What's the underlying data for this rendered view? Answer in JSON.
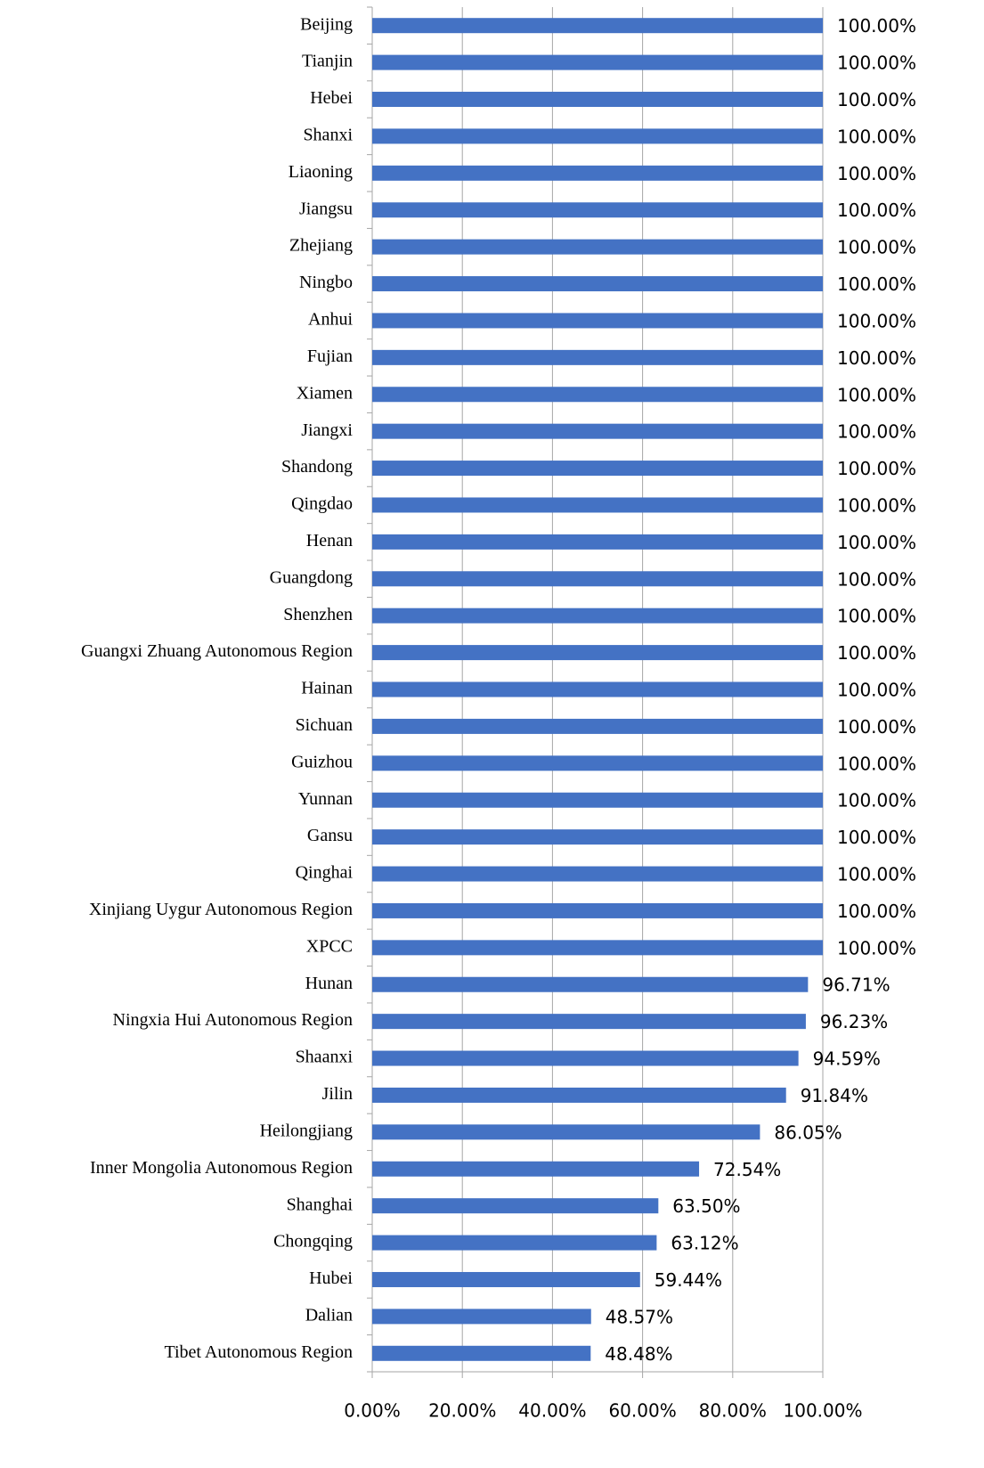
{
  "chart_data": {
    "type": "bar",
    "orientation": "horizontal",
    "categories": [
      "Beijing",
      "Tianjin",
      "Hebei",
      "Shanxi",
      "Liaoning",
      "Jiangsu",
      "Zhejiang",
      "Ningbo",
      "Anhui",
      "Fujian",
      "Xiamen",
      "Jiangxi",
      "Shandong",
      "Qingdao",
      "Henan",
      "Guangdong",
      "Shenzhen",
      "Guangxi Zhuang Autonomous Region",
      "Hainan",
      "Sichuan",
      "Guizhou",
      "Yunnan",
      "Gansu",
      "Qinghai",
      "Xinjiang Uygur Autonomous Region",
      "XPCC",
      "Hunan",
      "Ningxia Hui Autonomous Region",
      "Shaanxi",
      "Jilin",
      "Heilongjiang",
      "Inner Mongolia Autonomous Region",
      "Shanghai",
      "Chongqing",
      "Hubei",
      "Dalian",
      "Tibet Autonomous Region"
    ],
    "values": [
      100,
      100,
      100,
      100,
      100,
      100,
      100,
      100,
      100,
      100,
      100,
      100,
      100,
      100,
      100,
      100,
      100,
      100,
      100,
      100,
      100,
      100,
      100,
      100,
      100,
      100,
      96.71,
      96.23,
      94.59,
      91.84,
      86.05,
      72.54,
      63.5,
      63.12,
      59.44,
      48.57,
      48.48
    ],
    "value_labels": [
      "100.00%",
      "100.00%",
      "100.00%",
      "100.00%",
      "100.00%",
      "100.00%",
      "100.00%",
      "100.00%",
      "100.00%",
      "100.00%",
      "100.00%",
      "100.00%",
      "100.00%",
      "100.00%",
      "100.00%",
      "100.00%",
      "100.00%",
      "100.00%",
      "100.00%",
      "100.00%",
      "100.00%",
      "100.00%",
      "100.00%",
      "100.00%",
      "100.00%",
      "100.00%",
      "96.71%",
      "96.23%",
      "94.59%",
      "91.84%",
      "86.05%",
      "72.54%",
      "63.50%",
      "63.12%",
      "59.44%",
      "48.57%",
      "48.48%"
    ],
    "color": "#4472c4",
    "xlim": [
      0,
      100
    ],
    "xticks": [
      {
        "value": 0,
        "label": "0.00%"
      },
      {
        "value": 20,
        "label": "20.00%"
      },
      {
        "value": 40,
        "label": "40.00%"
      },
      {
        "value": 60,
        "label": "60.00%"
      },
      {
        "value": 80,
        "label": "80.00%"
      },
      {
        "value": 100,
        "label": "100.00%"
      }
    ],
    "grid": true
  }
}
